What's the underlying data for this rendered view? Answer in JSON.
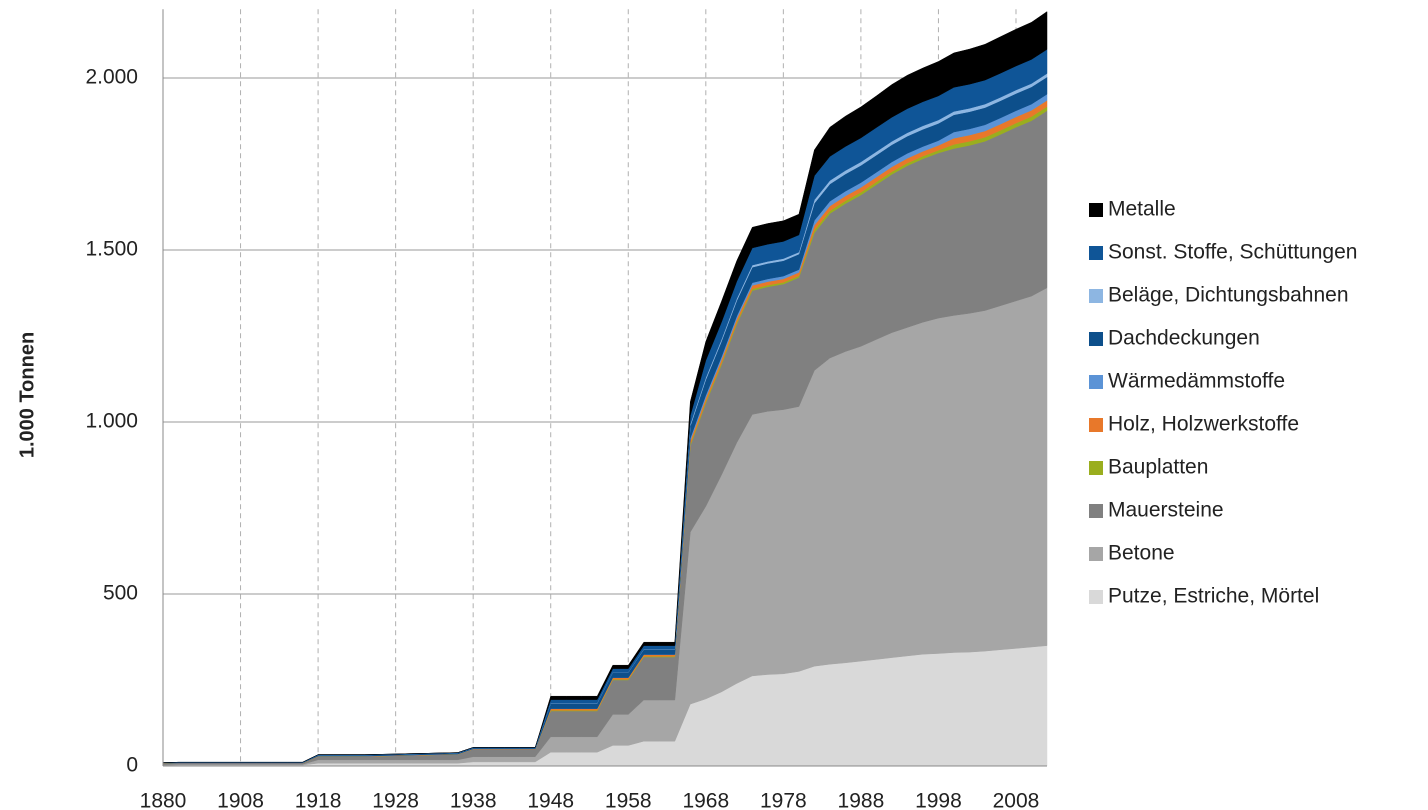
{
  "chart_data": {
    "type": "stacked_area",
    "y_label": "1.000 Tonnen",
    "categories": [
      "1880",
      null,
      null,
      null,
      null,
      "1908",
      null,
      null,
      null,
      null,
      "1918",
      null,
      null,
      null,
      null,
      "1928",
      null,
      null,
      null,
      null,
      "1938",
      null,
      null,
      null,
      null,
      "1948",
      null,
      null,
      null,
      null,
      "1958",
      null,
      null,
      null,
      null,
      "1968",
      null,
      null,
      null,
      null,
      "1978",
      null,
      null,
      null,
      null,
      "1988",
      null,
      null,
      null,
      null,
      "1998",
      null,
      null,
      null,
      null,
      "2008",
      null,
      null
    ],
    "ylim": [
      0,
      2200
    ],
    "yticks": [
      0,
      500,
      {
        "value": 1000,
        "label": "1.000"
      },
      {
        "value": 1500,
        "label": "1.500"
      },
      {
        "value": 2000,
        "label": "2.000"
      }
    ],
    "grid": true,
    "legend": "right",
    "series": [
      {
        "name": "Putze, Estriche, Mörtel",
        "color": "#d9d9d9",
        "values": [
          2,
          3,
          3,
          3,
          3,
          3,
          3,
          3,
          3,
          3,
          8,
          8,
          8,
          8,
          8,
          8,
          8,
          8,
          8,
          8,
          12,
          12,
          12,
          12,
          12,
          40,
          40,
          40,
          40,
          60,
          60,
          72,
          72,
          72,
          180,
          195,
          215,
          240,
          262,
          266,
          268,
          275,
          290,
          296,
          300,
          305,
          310,
          315,
          320,
          325,
          327,
          330,
          331,
          334,
          338,
          342,
          346,
          350
        ]
      },
      {
        "name": "Betone",
        "color": "#a6a6a6",
        "values": [
          2,
          2,
          2,
          2,
          2,
          2,
          2,
          2,
          2,
          2,
          10,
          10,
          10,
          10,
          10,
          10,
          10,
          10,
          10,
          10,
          15,
          15,
          15,
          15,
          15,
          45,
          45,
          45,
          45,
          90,
          90,
          120,
          120,
          120,
          500,
          560,
          630,
          700,
          760,
          765,
          768,
          770,
          860,
          890,
          905,
          915,
          930,
          945,
          955,
          965,
          975,
          980,
          985,
          990,
          1000,
          1010,
          1020,
          1040
        ]
      },
      {
        "name": "Mauersteine",
        "color": "#808080",
        "values": [
          3,
          3,
          3,
          3,
          3,
          3,
          3,
          3,
          3,
          3,
          10,
          10,
          10,
          10,
          11,
          12,
          13,
          14,
          15,
          16,
          22,
          22,
          22,
          22,
          22,
          75,
          75,
          75,
          75,
          100,
          100,
          125,
          125,
          125,
          250,
          300,
          320,
          345,
          360,
          362,
          365,
          375,
          400,
          420,
          430,
          440,
          450,
          460,
          470,
          475,
          480,
          485,
          488,
          492,
          498,
          505,
          510,
          515
        ]
      },
      {
        "name": "Bauplatten",
        "color": "#9aae1e",
        "values": [
          0,
          0,
          0,
          0,
          0,
          0,
          0,
          0,
          0,
          0,
          0,
          0,
          0,
          0,
          0,
          0,
          0,
          0,
          0,
          0,
          0,
          0,
          0,
          0,
          0,
          2,
          2,
          2,
          2,
          2,
          2,
          2,
          2,
          2,
          5,
          5,
          5,
          5,
          5,
          5,
          5,
          5,
          8,
          8,
          8,
          8,
          8,
          8,
          8,
          8,
          8,
          12,
          12,
          12,
          12,
          12,
          12,
          12
        ]
      },
      {
        "name": "Holz, Holzwerkstoffe",
        "color": "#e8782a",
        "values": [
          1,
          1,
          1,
          1,
          1,
          1,
          1,
          1,
          1,
          1,
          1,
          1,
          1,
          1,
          1,
          1,
          1,
          1,
          1,
          1,
          1,
          1,
          1,
          1,
          1,
          5,
          5,
          5,
          5,
          5,
          5,
          5,
          5,
          5,
          10,
          10,
          10,
          10,
          10,
          10,
          10,
          10,
          14,
          14,
          14,
          14,
          14,
          14,
          14,
          14,
          14,
          18,
          18,
          18,
          18,
          18,
          18,
          18
        ]
      },
      {
        "name": "Wärmedämmstoffe",
        "color": "#5b93d6",
        "values": [
          0,
          0,
          0,
          0,
          0,
          0,
          0,
          0,
          0,
          0,
          0,
          0,
          0,
          0,
          0,
          0,
          0,
          0,
          0,
          0,
          0,
          0,
          0,
          0,
          0,
          0,
          0,
          0,
          0,
          0,
          0,
          0,
          0,
          0,
          8,
          8,
          8,
          8,
          8,
          8,
          8,
          8,
          14,
          14,
          14,
          14,
          14,
          14,
          14,
          14,
          14,
          18,
          18,
          18,
          18,
          18,
          18,
          18
        ]
      },
      {
        "name": "Dachdeckungen",
        "color": "#0d4f8b",
        "values": [
          1,
          1,
          1,
          1,
          1,
          1,
          1,
          1,
          1,
          1,
          3,
          3,
          3,
          3,
          3,
          3,
          3,
          3,
          3,
          3,
          3,
          3,
          3,
          3,
          3,
          15,
          15,
          15,
          15,
          15,
          15,
          15,
          15,
          15,
          35,
          45,
          45,
          45,
          45,
          45,
          45,
          45,
          50,
          50,
          50,
          50,
          50,
          50,
          50,
          50,
          50,
          50,
          50,
          50,
          50,
          50,
          50,
          50
        ]
      },
      {
        "name": "Beläge, Dichtungsbahnen",
        "color": "#8db6e2",
        "values": [
          0,
          0,
          0,
          0,
          0,
          0,
          0,
          0,
          0,
          0,
          0,
          0,
          0,
          0,
          0,
          0,
          0,
          0,
          0,
          0,
          0,
          0,
          0,
          0,
          0,
          1,
          1,
          1,
          1,
          1,
          1,
          1,
          1,
          1,
          6,
          6,
          6,
          6,
          6,
          6,
          6,
          6,
          10,
          10,
          10,
          10,
          10,
          10,
          10,
          10,
          10,
          10,
          10,
          10,
          10,
          10,
          10,
          10
        ]
      },
      {
        "name": "Sonst. Stoffe, Schüttungen",
        "color": "#0f5597",
        "values": [
          1,
          1,
          1,
          1,
          1,
          1,
          1,
          1,
          1,
          1,
          1,
          1,
          1,
          1,
          1,
          1,
          1,
          1,
          1,
          1,
          1,
          1,
          1,
          1,
          1,
          10,
          10,
          10,
          10,
          10,
          10,
          10,
          10,
          10,
          25,
          50,
          50,
          50,
          50,
          50,
          50,
          50,
          70,
          70,
          70,
          70,
          70,
          70,
          70,
          70,
          70,
          70,
          70,
          70,
          70,
          70,
          70,
          70
        ]
      },
      {
        "name": "Metalle",
        "color": "#000000",
        "values": [
          0,
          0,
          0,
          0,
          0,
          0,
          0,
          0,
          0,
          0,
          0,
          0,
          0,
          0,
          0,
          0,
          0,
          0,
          0,
          0,
          0,
          0,
          0,
          0,
          0,
          10,
          10,
          10,
          10,
          10,
          10,
          10,
          10,
          10,
          40,
          55,
          60,
          60,
          60,
          60,
          60,
          60,
          75,
          85,
          88,
          90,
          92,
          95,
          97,
          98,
          100,
          100,
          102,
          104,
          106,
          107,
          108,
          110
        ]
      }
    ]
  }
}
